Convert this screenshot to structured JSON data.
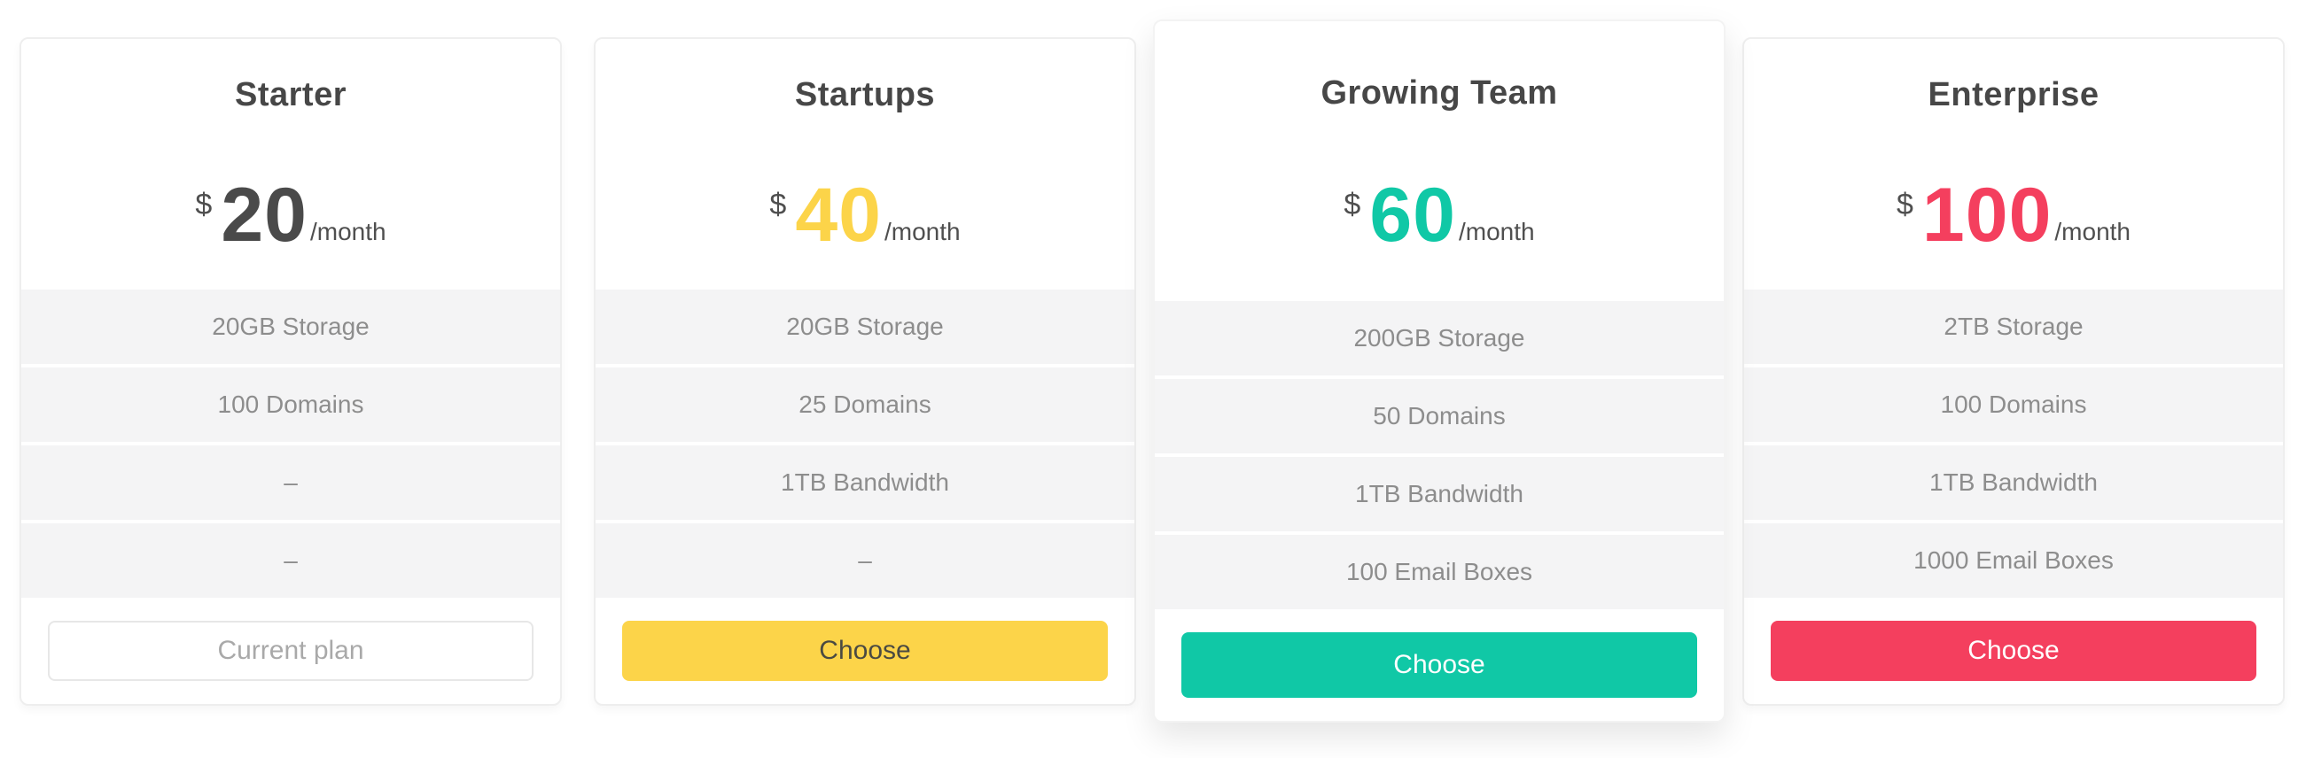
{
  "plans": [
    {
      "name": "Starter",
      "currency": "$",
      "amount": "20",
      "period": "/month",
      "accent": "#4a4a4a",
      "features": [
        "20GB Storage",
        "100 Domains",
        "–",
        "–"
      ],
      "cta_label": "Current plan",
      "cta_style": "outline",
      "featured": false
    },
    {
      "name": "Startups",
      "currency": "$",
      "amount": "40",
      "period": "/month",
      "accent": "#fcd449",
      "features": [
        "20GB Storage",
        "25 Domains",
        "1TB Bandwidth",
        "–"
      ],
      "cta_label": "Choose",
      "cta_style": "solid",
      "featured": false
    },
    {
      "name": "Growing Team",
      "currency": "$",
      "amount": "60",
      "period": "/month",
      "accent": "#10c8a6",
      "features": [
        "200GB Storage",
        "50 Domains",
        "1TB Bandwidth",
        "100 Email Boxes"
      ],
      "cta_label": "Choose",
      "cta_style": "solid",
      "featured": true
    },
    {
      "name": "Enterprise",
      "currency": "$",
      "amount": "100",
      "period": "/month",
      "accent": "#f43f5e",
      "features": [
        "2TB Storage",
        "100 Domains",
        "1TB Bandwidth",
        "1000 Email Boxes"
      ],
      "cta_label": "Choose",
      "cta_style": "solid",
      "featured": false
    }
  ]
}
